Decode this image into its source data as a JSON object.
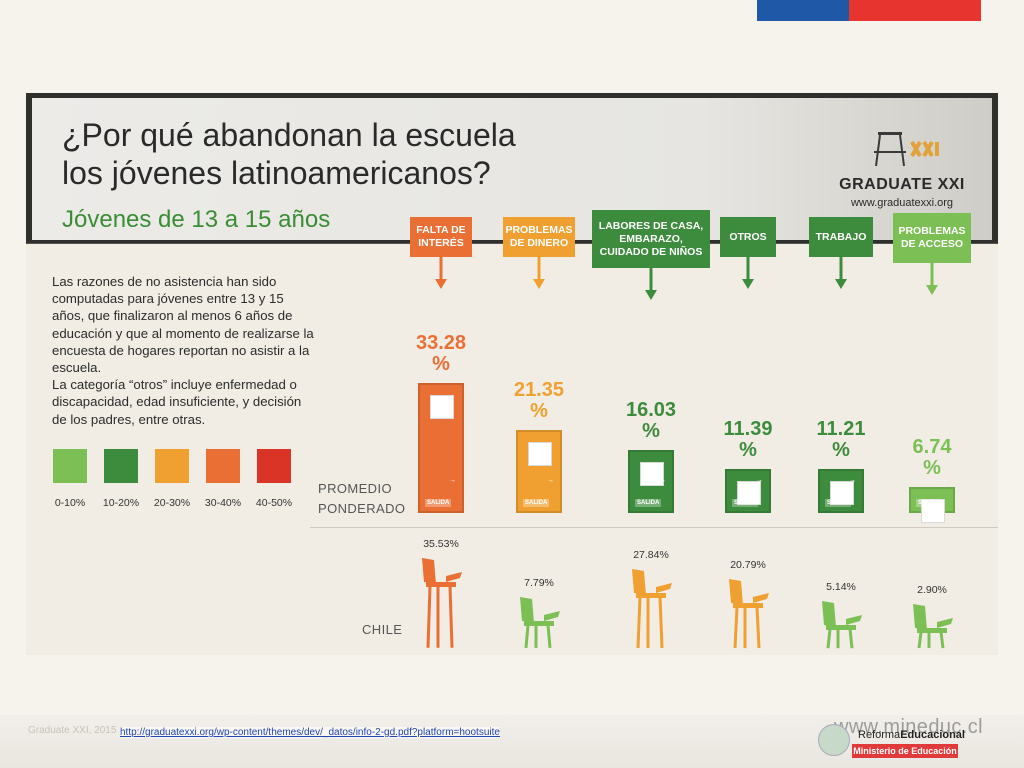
{
  "infographic": {
    "title": "¿Por qué abandonan la escuela\nlos jóvenes latinoamericanos?",
    "subtitle": "Jóvenes de 13 a 15 años",
    "brand_name": "GRADUATE XXI",
    "brand_url": "www.graduatexxi.org",
    "description": "Las razones de no asistencia han sido computadas para jóvenes entre 13 y 15 años, que finalizaron al menos 6 años de educación y que al momento de realizarse la encuesta de hogares reportan no asistir a la escuela.\nLa categoría “otros” incluye enfermedad o discapacidad, edad insuficiente, y decisión de los padres, entre otras.",
    "row_label_average": "PROMEDIO\nPONDERADO",
    "row_label_chile": "CHILE",
    "door_label": "SALIDA"
  },
  "legend": [
    {
      "label": "0-10%",
      "color": "#7cbf55"
    },
    {
      "label": "10-20%",
      "color": "#3d8b3d"
    },
    {
      "label": "20-30%",
      "color": "#f0a030"
    },
    {
      "label": "30-40%",
      "color": "#ea6f35"
    },
    {
      "label": "40-50%",
      "color": "#d93426"
    }
  ],
  "chart_data": {
    "type": "bar",
    "categories": [
      "FALTA DE INTERÉS",
      "PROBLEMAS DE DINERO",
      "LABORES DE CASA, EMBARAZO, CUIDADO DE NIÑOS",
      "OTROS",
      "TRABAJO",
      "PROBLEMAS DE ACCESO"
    ],
    "series": [
      {
        "name": "PROMEDIO PONDERADO",
        "values": [
          33.28,
          21.35,
          16.03,
          11.39,
          11.21,
          6.74
        ],
        "labels": [
          "33.28 %",
          "21.35 %",
          "16.03 %",
          "11.39 %",
          "11.21 %",
          "6.74 %"
        ]
      },
      {
        "name": "CHILE",
        "values": [
          35.53,
          7.79,
          27.84,
          20.79,
          5.14,
          2.9
        ],
        "labels": [
          "35.53%",
          "7.79%",
          "27.84%",
          "20.79%",
          "5.14%",
          "2.90%"
        ]
      }
    ],
    "colors": [
      "#ea6f35",
      "#f0a030",
      "#3d8b3d",
      "#3d8b3d",
      "#3d8b3d",
      "#7cbf55"
    ],
    "chile_colors": [
      "#ea6f35",
      "#7cbf55",
      "#f0a030",
      "#f0a030",
      "#7cbf55",
      "#7cbf55"
    ],
    "title": "",
    "xlabel": "",
    "ylabel": ""
  },
  "footer": {
    "faint_text": "Graduate XXI, 2015",
    "source_link": "http://graduatexxi.org/wp-content/themes/dev/_datos/info-2-gd.pdf?platform=hootsuite",
    "mineduc_url": "www.mineduc.cl",
    "reforma_a": "Reforma",
    "reforma_b": "Educacional",
    "ministerio": "Ministerio de Educación"
  }
}
